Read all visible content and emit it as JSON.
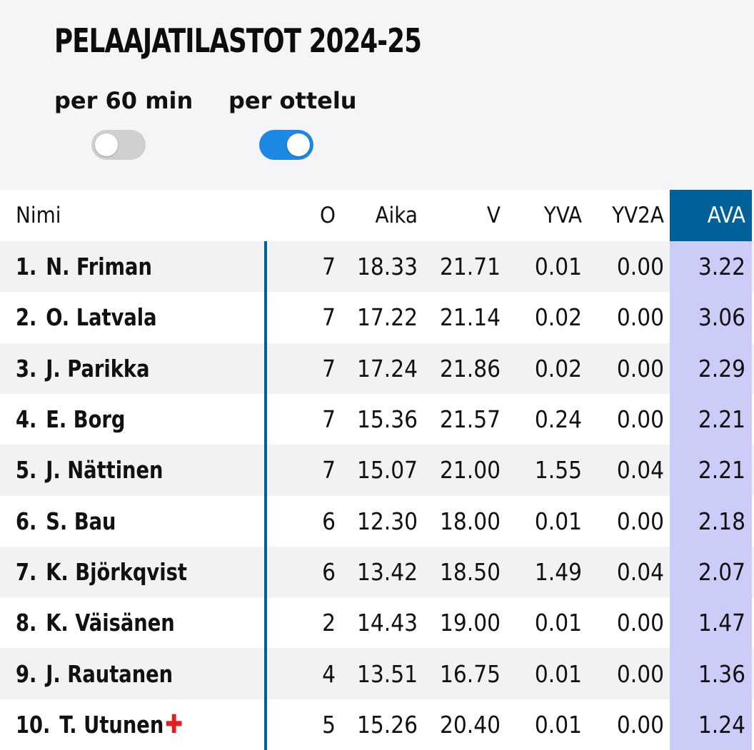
{
  "title": "PELAAJATILASTOT 2024-25",
  "toggles": [
    {
      "label": "per 60 min",
      "state": "off"
    },
    {
      "label": "per ottelu",
      "state": "on"
    }
  ],
  "colors": {
    "accent": "#00609a",
    "toggle_on": "#1e88e5",
    "highlight_column": "#ccccf9"
  },
  "table": {
    "headers": {
      "name": "Nimi",
      "o": "O",
      "aika": "Aika",
      "v": "V",
      "yva": "YVA",
      "yv2a": "YV2A",
      "ava": "AVA"
    },
    "rows": [
      {
        "rank": "1.",
        "name": "N. Friman",
        "o": "7",
        "aika": "18.33",
        "v": "21.71",
        "yva": "0.01",
        "yv2a": "0.00",
        "ava": "3.22"
      },
      {
        "rank": "2.",
        "name": "O. Latvala",
        "o": "7",
        "aika": "17.22",
        "v": "21.14",
        "yva": "0.02",
        "yv2a": "0.00",
        "ava": "3.06"
      },
      {
        "rank": "3.",
        "name": "J. Parikka",
        "o": "7",
        "aika": "17.24",
        "v": "21.86",
        "yva": "0.02",
        "yv2a": "0.00",
        "ava": "2.29"
      },
      {
        "rank": "4.",
        "name": "E. Borg",
        "o": "7",
        "aika": "15.36",
        "v": "21.57",
        "yva": "0.24",
        "yv2a": "0.00",
        "ava": "2.21"
      },
      {
        "rank": "5.",
        "name": "J. Nättinen",
        "o": "7",
        "aika": "15.07",
        "v": "21.00",
        "yva": "1.55",
        "yv2a": "0.04",
        "ava": "2.21"
      },
      {
        "rank": "6.",
        "name": "S. Bau",
        "o": "6",
        "aika": "12.30",
        "v": "18.00",
        "yva": "0.01",
        "yv2a": "0.00",
        "ava": "2.18"
      },
      {
        "rank": "7.",
        "name": "K. Björkqvist",
        "o": "6",
        "aika": "13.42",
        "v": "18.50",
        "yva": "1.49",
        "yv2a": "0.04",
        "ava": "2.07"
      },
      {
        "rank": "8.",
        "name": "K. Väisänen",
        "o": "2",
        "aika": "14.43",
        "v": "19.00",
        "yva": "0.01",
        "yv2a": "0.00",
        "ava": "1.47"
      },
      {
        "rank": "9.",
        "name": "J. Rautanen",
        "o": "4",
        "aika": "13.51",
        "v": "16.75",
        "yva": "0.01",
        "yv2a": "0.00",
        "ava": "1.36"
      },
      {
        "rank": "10.",
        "name": "T. Utunen",
        "o": "5",
        "aika": "15.26",
        "v": "20.40",
        "yva": "0.01",
        "yv2a": "0.00",
        "ava": "1.24",
        "injury_icon": "red-cross-icon"
      }
    ]
  }
}
